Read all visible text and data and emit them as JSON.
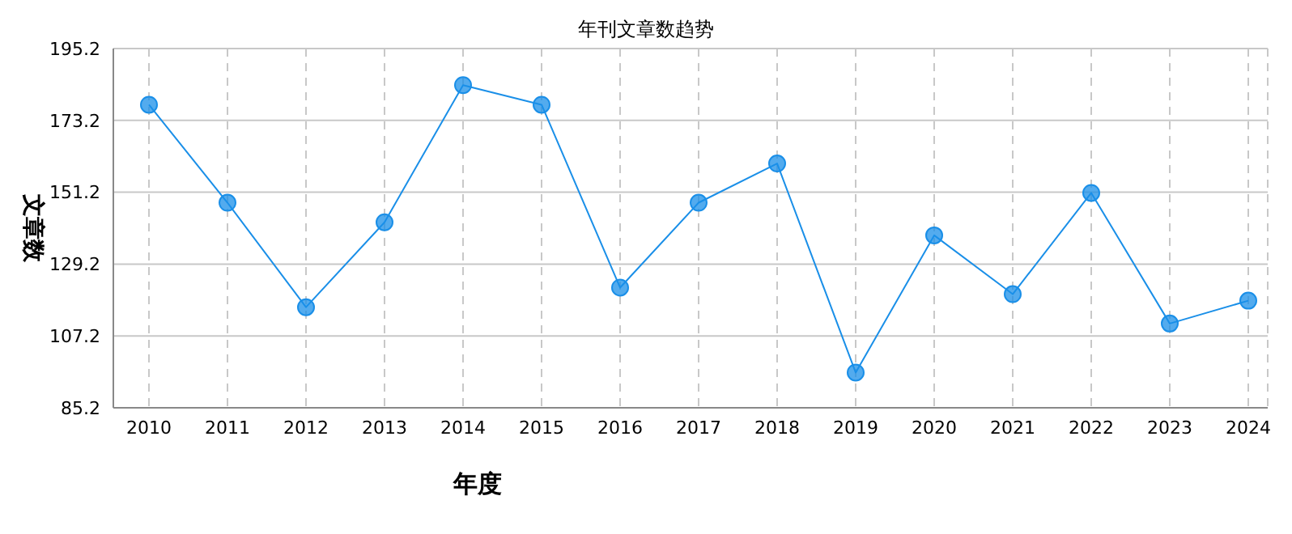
{
  "chart_data": {
    "type": "line",
    "title": "年刊文章数趋势",
    "xlabel": "年度",
    "ylabel": "文章数",
    "categories": [
      "2010",
      "2011",
      "2012",
      "2013",
      "2014",
      "2015",
      "2016",
      "2017",
      "2018",
      "2019",
      "2020",
      "2021",
      "2022",
      "2023",
      "2024"
    ],
    "series": [
      {
        "color": "#1a8fe8",
        "values": [
          178,
          148,
          116,
          142,
          184,
          178,
          122,
          148,
          160,
          96,
          138,
          120,
          151,
          111,
          118
        ]
      }
    ],
    "ylim": [
      85.2,
      195.2
    ],
    "yticks": [
      85.2,
      107.2,
      129.2,
      151.2,
      173.2,
      195.2
    ],
    "grid": true,
    "marker": "circle",
    "line_style": "solid"
  }
}
